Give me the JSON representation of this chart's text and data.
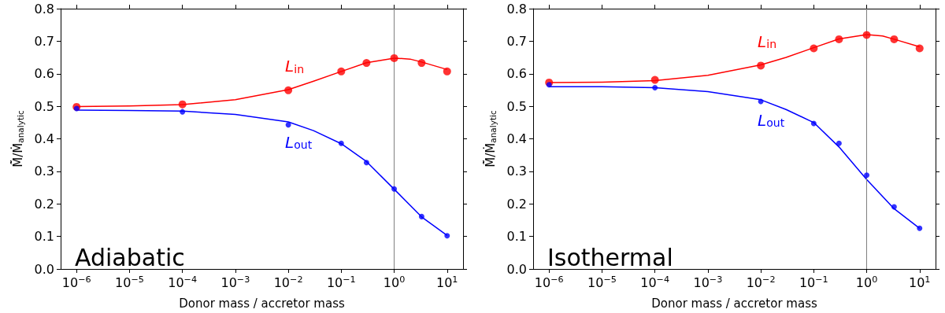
{
  "chart_data": [
    {
      "type": "scatter",
      "xlabel": "Donor mass / accretor mass",
      "ylabel": "M̃̇/Ṁ$_{analytic}$",
      "log": "x",
      "grid": false,
      "legend": false,
      "marker": "circle",
      "x": [
        1e-06,
        0.0001,
        0.01,
        0.1,
        0.3,
        1,
        3.3,
        10
      ],
      "xlim": [
        5e-07,
        20
      ],
      "xticks": [
        {
          "value": 1e-06,
          "label": "10$^{−6}$"
        },
        {
          "value": 1e-05,
          "label": "10$^{−5}$"
        },
        {
          "value": 0.0001,
          "label": "10$^{−4}$"
        },
        {
          "value": 0.001,
          "label": "10$^{−3}$"
        },
        {
          "value": 0.01,
          "label": "10$^{−2}$"
        },
        {
          "value": 0.1,
          "label": "10$^{−1}$"
        },
        {
          "value": 1,
          "label": "10$^{0}$"
        },
        {
          "value": 10,
          "label": "10$^{1}$"
        }
      ],
      "ylim": [
        0,
        0.8
      ],
      "yticks": [
        {
          "value": 0,
          "label": "0.0"
        },
        {
          "value": 0.1,
          "label": "0.1"
        },
        {
          "value": 0.2,
          "label": "0.2"
        },
        {
          "value": 0.3,
          "label": "0.3"
        },
        {
          "value": 0.4,
          "label": "0.4"
        },
        {
          "value": 0.5,
          "label": "0.5"
        },
        {
          "value": 0.6,
          "label": "0.6"
        },
        {
          "value": 0.7,
          "label": "0.7"
        },
        {
          "value": 0.8,
          "label": "0.8"
        }
      ],
      "series": [
        {
          "color": "#ff0000",
          "values": [
            0.498,
            0.506,
            0.549,
            0.607,
            0.633,
            0.648,
            0.633,
            0.607
          ]
        },
        {
          "color": "#0000ff",
          "values": [
            0.493,
            0.483,
            0.443,
            0.386,
            0.327,
            0.246,
            0.161,
            0.102
          ]
        },
        {
          "type": "line",
          "name": "L$_{in}$",
          "marker": "none",
          "color": "#ff0000",
          "x": [
            1e-06,
            1e-05,
            0.0001,
            0.001,
            0.01,
            0.03,
            0.1,
            0.3,
            1,
            2,
            3.3,
            10
          ],
          "values": [
            0.499,
            0.501,
            0.505,
            0.52,
            0.551,
            0.577,
            0.607,
            0.634,
            0.648,
            0.645,
            0.636,
            0.613
          ]
        },
        {
          "type": "line",
          "name": "L$_{out}$",
          "marker": "none",
          "color": "#0000ff",
          "x": [
            1e-06,
            1e-05,
            0.0001,
            0.001,
            0.01,
            0.03,
            0.1,
            0.3,
            1,
            3.3,
            10
          ],
          "values": [
            0.488,
            0.487,
            0.485,
            0.475,
            0.452,
            0.425,
            0.385,
            0.33,
            0.245,
            0.16,
            0.103
          ]
        }
      ],
      "ref_lines": [
        {
          "axis": "x",
          "value": 1,
          "color": "#808080"
        }
      ],
      "annotations": [
        "Adiabatic"
      ]
    },
    {
      "type": "scatter",
      "xlabel": "Donor mass / accretor mass",
      "ylabel": "M̃̇/Ṁ$_{analytic}$",
      "log": "x",
      "grid": false,
      "legend": false,
      "marker": "circle",
      "x": [
        1e-06,
        0.0001,
        0.01,
        0.1,
        0.3,
        1,
        3.3,
        10
      ],
      "xlim": [
        5e-07,
        20
      ],
      "xticks": [
        {
          "value": 1e-06,
          "label": "10$^{−6}$"
        },
        {
          "value": 1e-05,
          "label": "10$^{−5}$"
        },
        {
          "value": 0.0001,
          "label": "10$^{−4}$"
        },
        {
          "value": 0.001,
          "label": "10$^{−3}$"
        },
        {
          "value": 0.01,
          "label": "10$^{−2}$"
        },
        {
          "value": 0.1,
          "label": "10$^{−1}$"
        },
        {
          "value": 1,
          "label": "10$^{0}$"
        },
        {
          "value": 10,
          "label": "10$^{1}$"
        }
      ],
      "ylim": [
        0,
        0.8
      ],
      "yticks": [
        {
          "value": 0,
          "label": "0.0"
        },
        {
          "value": 0.1,
          "label": "0.1"
        },
        {
          "value": 0.2,
          "label": "0.2"
        },
        {
          "value": 0.3,
          "label": "0.3"
        },
        {
          "value": 0.4,
          "label": "0.4"
        },
        {
          "value": 0.5,
          "label": "0.5"
        },
        {
          "value": 0.6,
          "label": "0.6"
        },
        {
          "value": 0.7,
          "label": "0.7"
        },
        {
          "value": 0.8,
          "label": "0.8"
        }
      ],
      "series": [
        {
          "color": "#ff0000",
          "values": [
            0.573,
            0.581,
            0.625,
            0.678,
            0.706,
            0.719,
            0.706,
            0.678
          ]
        },
        {
          "color": "#0000ff",
          "values": [
            0.566,
            0.557,
            0.515,
            0.447,
            0.386,
            0.288,
            0.191,
            0.125
          ]
        },
        {
          "type": "line",
          "name": "L$_{in}$",
          "marker": "none",
          "color": "#ff0000",
          "x": [
            1e-06,
            1e-05,
            0.0001,
            0.001,
            0.01,
            0.03,
            0.1,
            0.3,
            1,
            2,
            3.3,
            10
          ],
          "values": [
            0.573,
            0.574,
            0.579,
            0.595,
            0.627,
            0.65,
            0.68,
            0.707,
            0.72,
            0.716,
            0.706,
            0.683
          ]
        },
        {
          "type": "line",
          "name": "L$_{out}$",
          "marker": "none",
          "color": "#0000ff",
          "x": [
            1e-06,
            1e-05,
            0.0001,
            0.001,
            0.01,
            0.03,
            0.1,
            0.3,
            1,
            3.3,
            10
          ],
          "values": [
            0.56,
            0.56,
            0.557,
            0.545,
            0.52,
            0.49,
            0.45,
            0.375,
            0.275,
            0.185,
            0.125
          ]
        }
      ],
      "ref_lines": [
        {
          "axis": "x",
          "value": 1,
          "color": "#808080"
        }
      ],
      "annotations": [
        "Isothermal"
      ]
    }
  ]
}
